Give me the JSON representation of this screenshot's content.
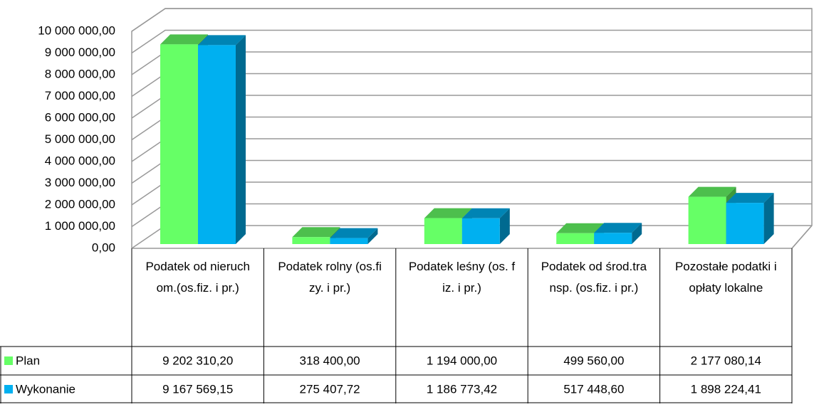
{
  "chart_data": {
    "type": "bar3d",
    "categories": [
      "Podatek od nieruchom.(os.fiz. i pr.)",
      "Podatek rolny (os.fizy. i pr.)",
      "Podatek leśny (os. fiz. i pr.)",
      "Podatek od środ.transp. (os.fiz. i pr.)",
      "Pozostałe podatki i opłaty lokalne"
    ],
    "series": [
      {
        "name": "Plan",
        "color": "#66ff66",
        "values": [
          9202310.2,
          318400.0,
          1194000.0,
          499560.0,
          2177080.14
        ],
        "value_labels": [
          "9 202 310,20",
          "318 400,00",
          "1 194 000,00",
          "499 560,00",
          "2 177 080,14"
        ]
      },
      {
        "name": "Wykonanie",
        "color": "#00b0f0",
        "values": [
          9167569.15,
          275407.72,
          1186773.42,
          517448.6,
          1898224.41
        ],
        "value_labels": [
          "9 167 569,15",
          "275 407,72",
          "1 186 773,42",
          "517 448,60",
          "1 898 224,41"
        ]
      }
    ],
    "ylim": [
      0,
      10000000
    ],
    "yticks": [
      {
        "value": 0,
        "label": "0,00"
      },
      {
        "value": 1000000,
        "label": "1 000 000,00"
      },
      {
        "value": 2000000,
        "label": "2 000 000,00"
      },
      {
        "value": 3000000,
        "label": "3 000 000,00"
      },
      {
        "value": 4000000,
        "label": "4 000 000,00"
      },
      {
        "value": 5000000,
        "label": "5 000 000,00"
      },
      {
        "value": 6000000,
        "label": "6 000 000,00"
      },
      {
        "value": 7000000,
        "label": "7 000 000,00"
      },
      {
        "value": 8000000,
        "label": "8 000 000,00"
      },
      {
        "value": 9000000,
        "label": "9 000 000,00"
      },
      {
        "value": 10000000,
        "label": "10 000 000,00"
      }
    ],
    "grid": true,
    "data_table": true
  }
}
